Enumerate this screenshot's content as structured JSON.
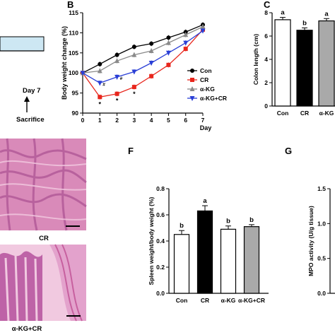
{
  "figure": {
    "panel_a_day_label": "Day 7",
    "panel_a_sacrifice_label": "Sacrifice",
    "panel_d_caption_1": "CR",
    "panel_d_caption_2": "α-KG+CR",
    "colors": {
      "black": "#000000",
      "red": "#e8261c",
      "gray": "#8a8a8a",
      "blue": "#2a3fd6",
      "bar_gray": "#a9a9a9",
      "timeline_fill": "#cde7f3",
      "histology_pink": "#d98ab9",
      "histology_dark": "#9c3f86",
      "histology_light": "#f1c9e0"
    }
  },
  "chart_data": [
    {
      "panel": "B",
      "type": "line",
      "xlabel": "Day",
      "ylabel": "Body weight change (%)",
      "x": [
        0,
        1,
        2,
        3,
        4,
        5,
        6,
        7
      ],
      "xlim": [
        0,
        7
      ],
      "ylim": [
        90,
        115
      ],
      "yticks": [
        90,
        95,
        100,
        105,
        110,
        115
      ],
      "legend": "right",
      "series": [
        {
          "name": "Con",
          "color": "#000000",
          "marker": "circle",
          "values": [
            100,
            102.2,
            104.5,
            106.5,
            107.3,
            108.8,
            110.2,
            112.0
          ]
        },
        {
          "name": "CR",
          "color": "#e8261c",
          "marker": "square",
          "values": [
            100,
            94.0,
            94.8,
            96.5,
            99.2,
            102.0,
            106.0,
            110.8
          ]
        },
        {
          "name": "α-KG",
          "color": "#8a8a8a",
          "marker": "triangle",
          "values": [
            100,
            100.5,
            103.0,
            104.5,
            105.5,
            107.5,
            109.5,
            111.5
          ]
        },
        {
          "name": "α-KG+CR",
          "color": "#2a3fd6",
          "marker": "triangle-down",
          "values": [
            100,
            97.5,
            99.0,
            100.3,
            102.5,
            105.0,
            107.5,
            110.5
          ]
        }
      ],
      "annotations": [
        "#",
        "#",
        "*",
        "*",
        "*"
      ]
    },
    {
      "panel": "C",
      "type": "bar",
      "ylabel": "Colon length (cm)",
      "ylim": [
        0,
        8
      ],
      "yticks": [
        0,
        2,
        4,
        6,
        8
      ],
      "categories": [
        "Con",
        "CR",
        "α-KG"
      ],
      "values": [
        7.4,
        6.5,
        7.3
      ],
      "errors": [
        0.2,
        0.2,
        0.2
      ],
      "letters": [
        "a",
        "b",
        "a"
      ],
      "bar_colors": [
        "#ffffff",
        "#000000",
        "#a9a9a9"
      ]
    },
    {
      "panel": "F",
      "type": "bar",
      "ylabel": "Spleen weight/body weight (%)",
      "ylim": [
        0,
        0.8
      ],
      "yticks": [
        0.0,
        0.2,
        0.4,
        0.6,
        0.8
      ],
      "categories": [
        "Con",
        "CR",
        "α-KG",
        "α-KG+CR"
      ],
      "values": [
        0.45,
        0.63,
        0.49,
        0.51
      ],
      "errors": [
        0.03,
        0.04,
        0.025,
        0.015
      ],
      "letters": [
        "b",
        "a",
        "b",
        "b"
      ],
      "bar_colors": [
        "#ffffff",
        "#000000",
        "#ffffff",
        "#a9a9a9"
      ]
    },
    {
      "panel": "G",
      "type": "bar",
      "ylabel": "MPO activity (U/g tissue)",
      "ylim": [
        0,
        1.5
      ],
      "yticks": [
        0.0,
        0.5,
        1.0,
        1.5
      ],
      "categories": [],
      "values": []
    }
  ]
}
